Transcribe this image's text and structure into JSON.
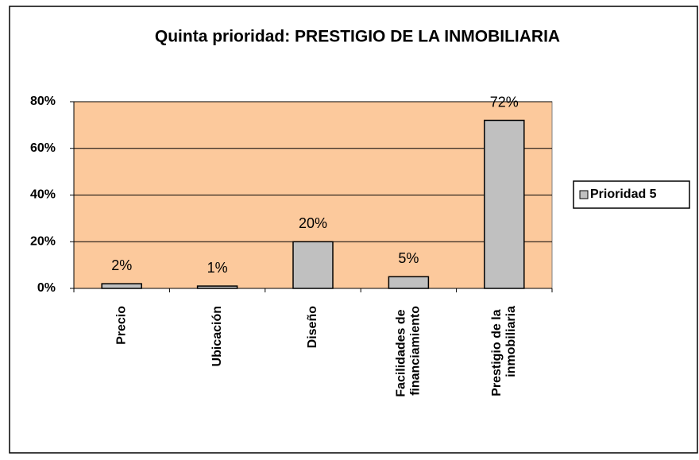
{
  "chart_data": {
    "type": "bar",
    "title": "Quinta prioridad: PRESTIGIO DE LA INMOBILIARIA",
    "categories": [
      "Precio",
      "Ubicación",
      "Diseño",
      "Facilidades de financiamiento",
      "Prestigio de la inmobiliaria"
    ],
    "series": [
      {
        "name": "Prioridad 5",
        "color": "#c0c0c0",
        "values": [
          2,
          1,
          20,
          5,
          72
        ],
        "value_labels": [
          "2%",
          "1%",
          "20%",
          "5%",
          "72%"
        ]
      }
    ],
    "ylim": [
      0,
      80
    ],
    "yticks": [
      {
        "value": 0,
        "label": "0%"
      },
      {
        "value": 20,
        "label": "20%"
      },
      {
        "value": 40,
        "label": "40%"
      },
      {
        "value": 60,
        "label": "60%"
      },
      {
        "value": 80,
        "label": "80%"
      }
    ],
    "grid": true,
    "plot_background": "#fcc99c",
    "legend": "right"
  }
}
